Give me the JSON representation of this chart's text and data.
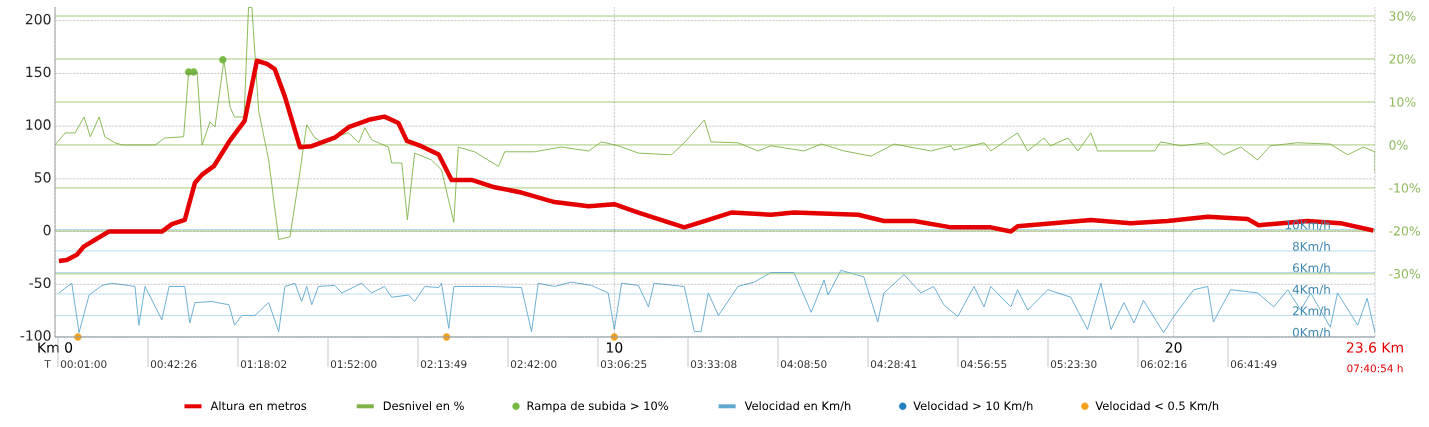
{
  "chart_data": {
    "type": "line",
    "xlim": [
      0,
      23.6
    ],
    "xticks": [
      {
        "value": 0,
        "label": "Km 0"
      },
      10,
      20,
      {
        "value": 23.6,
        "label": "23.6 Km"
      }
    ],
    "annotations": [
      "T",
      "00:01:00",
      "00:42:26",
      "01:18:02",
      "01:52:00",
      "02:13:49",
      "02:42:00",
      "03:06:25",
      "03:33:08",
      "04:08:50",
      "04:28:41",
      "04:56:55",
      "05:23:30",
      "06:02:16",
      "06:41:49",
      "07:40:54 h"
    ],
    "ylim": [
      -100,
      213
    ],
    "yticks": [
      -100,
      -50,
      0,
      50,
      100,
      150,
      200
    ],
    "y2lim": [
      -44.7,
      32.1
    ],
    "y2ticks": [
      {
        "value": -30,
        "label": "-30%"
      },
      {
        "value": -20,
        "label": "-20%"
      },
      {
        "value": -10,
        "label": "-10%"
      },
      {
        "value": 0,
        "label": "0%"
      },
      {
        "value": 10,
        "label": "10%"
      },
      {
        "value": 20,
        "label": "20%"
      },
      {
        "value": 30,
        "label": "30%"
      }
    ],
    "y3lim": [
      0,
      30.7
    ],
    "y3ticks": [
      {
        "value": 0,
        "label": "0Km/h"
      },
      {
        "value": 2,
        "label": "2Km/h"
      },
      {
        "value": 4,
        "label": "4Km/h"
      },
      {
        "value": 6,
        "label": "6Km/h"
      },
      {
        "value": 8,
        "label": "8Km/h"
      },
      {
        "value": 10,
        "label": "10Km/h"
      }
    ],
    "grid": true,
    "legend": "bottom",
    "series": [
      {
        "name": "Altura en metros",
        "color": "#e50000",
        "x": [
          0.07,
          0.21,
          0.39,
          0.52,
          0.71,
          0.96,
          1.91,
          2.09,
          2.32,
          2.5,
          2.63,
          2.84,
          3.11,
          3.39,
          3.61,
          3.79,
          3.93,
          4.11,
          4.38,
          4.59,
          5.0,
          5.25,
          5.61,
          5.89,
          6.14,
          6.29,
          6.55,
          6.86,
          7.09,
          7.45,
          7.86,
          8.34,
          8.93,
          9.54,
          10.0,
          10.43,
          11.25,
          11.61,
          12.09,
          12.8,
          13.21,
          14.36,
          14.82,
          15.36,
          16.02,
          16.73,
          17.09,
          17.21,
          17.63,
          18.52,
          19.23,
          19.89,
          20.61,
          21.32,
          21.52,
          22.39,
          22.98,
          23.57
        ],
        "values": [
          -28,
          -27,
          -22,
          -14,
          -8,
          0,
          0,
          7,
          11,
          46,
          54,
          62,
          85,
          105,
          162,
          159,
          154,
          128,
          80,
          81,
          89,
          99,
          106,
          109,
          103,
          86,
          81,
          73,
          49,
          49,
          42,
          37,
          28,
          24,
          26,
          18,
          4,
          10,
          18,
          16,
          18,
          16,
          10,
          10,
          4,
          4,
          0,
          5,
          7,
          11,
          8,
          10,
          14,
          12,
          6,
          10,
          8,
          1
        ]
      },
      {
        "name": "Desnivel en %",
        "axis": "y2",
        "color": "#7fb347",
        "x": [
          0,
          0.18,
          0.36,
          0.52,
          0.63,
          0.79,
          0.89,
          1.07,
          1.2,
          1.79,
          1.96,
          2.3,
          2.39,
          2.54,
          2.63,
          2.77,
          2.86,
          3.02,
          3.13,
          3.21,
          3.38,
          3.46,
          3.52,
          3.64,
          3.82,
          4.0,
          4.2,
          4.36,
          4.5,
          4.63,
          4.77,
          5.0,
          5.25,
          5.43,
          5.54,
          5.66,
          5.96,
          6.02,
          6.2,
          6.3,
          6.43,
          6.73,
          6.91,
          7.13,
          7.21,
          7.5,
          7.93,
          8.04,
          8.57,
          9.05,
          9.54,
          9.77,
          10.07,
          10.43,
          11.02,
          11.25,
          11.61,
          11.73,
          12.21,
          12.57,
          12.8,
          13.39,
          13.7,
          14.11,
          14.59,
          15.0,
          15.66,
          16.02,
          16.07,
          16.61,
          16.73,
          17.21,
          17.39,
          17.68,
          17.8,
          18.11,
          18.29,
          18.52,
          18.64,
          19.66,
          19.77,
          20.13,
          20.61,
          20.89,
          21.2,
          21.5,
          21.73,
          22.21,
          22.8,
          23.11,
          23.39,
          23.6,
          23.6
        ],
        "values": [
          0,
          2.8,
          2.8,
          6.5,
          1.9,
          6.5,
          1.9,
          0.5,
          0,
          0,
          1.6,
          1.9,
          17,
          17,
          0,
          5.3,
          4.2,
          19.8,
          8.8,
          6.5,
          6.5,
          32,
          32,
          8,
          -3.5,
          -22,
          -21.4,
          -8,
          4.7,
          1.9,
          0.5,
          1.9,
          2.8,
          0.5,
          4,
          1.2,
          -0.5,
          -4.2,
          -4.2,
          -17.4,
          -1.9,
          -3.5,
          -5.8,
          -18,
          -0.5,
          -1.6,
          -5,
          -1.6,
          -1.6,
          -0.5,
          -1.4,
          0.7,
          -0.2,
          -1.9,
          -2.3,
          0.5,
          5.8,
          0.7,
          0.5,
          -1.4,
          -0.2,
          -1.4,
          0.2,
          -1.4,
          -2.6,
          0.2,
          -1.4,
          -0.2,
          -1.2,
          0.5,
          -1.4,
          2.8,
          -1.4,
          1.6,
          -0.2,
          1.6,
          -1.4,
          2.8,
          -1.4,
          -1.4,
          0.7,
          -0.2,
          0.5,
          -2.3,
          -0.5,
          -3.5,
          -0.2,
          0.5,
          0.2,
          -2.3,
          -0.5,
          -1.6,
          -6.5
        ]
      },
      {
        "name": "Rampa de subida > 10%",
        "type": "scatter",
        "axis": "y2",
        "marker": "circle",
        "color": "#77b843",
        "x": [
          2.39,
          2.48,
          3.0
        ],
        "values": [
          17,
          17,
          19.8
        ]
      },
      {
        "name": "Velocidad en Km/h",
        "axis": "y3",
        "color": "#5ea8cf",
        "x": [
          0.07,
          0.3,
          0.43,
          0.61,
          0.84,
          1.02,
          1.43,
          1.5,
          1.61,
          1.91,
          2.04,
          2.32,
          2.41,
          2.5,
          2.8,
          3.11,
          3.21,
          3.34,
          3.57,
          3.82,
          4.0,
          4.11,
          4.29,
          4.41,
          4.5,
          4.59,
          4.71,
          5.0,
          5.13,
          5.48,
          5.66,
          5.89,
          6.02,
          6.32,
          6.43,
          6.61,
          6.86,
          6.91,
          7.04,
          7.13,
          7.39,
          7.63,
          7.8,
          8.34,
          8.52,
          8.64,
          8.93,
          9.23,
          9.59,
          9.89,
          10.0,
          10.13,
          10.43,
          10.61,
          10.71,
          11.25,
          11.43,
          11.55,
          11.68,
          11.86,
          12.21,
          12.5,
          12.8,
          13.21,
          13.52,
          13.75,
          13.82,
          14.05,
          14.46,
          14.71,
          14.82,
          15.18,
          15.48,
          15.71,
          15.89,
          16.14,
          16.43,
          16.61,
          16.73,
          17.09,
          17.21,
          17.39,
          17.75,
          18.16,
          18.46,
          18.7,
          18.88,
          19.11,
          19.29,
          19.46,
          19.82,
          20.0,
          20.36,
          20.61,
          20.71,
          21.02,
          21.5,
          21.79,
          22.04,
          22.27,
          22.45,
          22.8,
          22.93,
          23.29,
          23.46,
          23.6
        ],
        "values": [
          4.1,
          5,
          0.4,
          3.9,
          4.8,
          5,
          4.7,
          1.1,
          4.7,
          1.6,
          4.7,
          4.7,
          1.3,
          3.2,
          3.3,
          3,
          1.1,
          2,
          2,
          3.2,
          0.5,
          4.7,
          5,
          3.3,
          4.7,
          3,
          4.7,
          4.8,
          4.1,
          5,
          4.1,
          4.7,
          3.7,
          3.9,
          3.3,
          4.7,
          4.6,
          5,
          0.8,
          4.7,
          4.7,
          4.7,
          4.7,
          4.6,
          0.5,
          5,
          4.7,
          5.1,
          4.8,
          4.1,
          0.7,
          5,
          4.8,
          2.8,
          5,
          4.7,
          0.5,
          0.5,
          4.1,
          2,
          4.7,
          5.1,
          6,
          6,
          2.3,
          5.3,
          3.9,
          6.2,
          5.6,
          1.4,
          4.1,
          5.8,
          4.1,
          4.7,
          3,
          1.9,
          4.7,
          2.8,
          4.7,
          2.8,
          4.4,
          2.5,
          4.4,
          3.7,
          0.7,
          5,
          0.7,
          3.2,
          1.3,
          3.4,
          0.4,
          1.9,
          4.4,
          4.7,
          1.4,
          4.4,
          4.1,
          2.8,
          4.4,
          2.5,
          4.1,
          0.9,
          4.1,
          1.1,
          3.6,
          0.4
        ]
      },
      {
        "name": "Velocidad > 10 Km/h",
        "type": "scatter",
        "axis": "y3",
        "marker": "circle",
        "color": "#1f7fc0"
      },
      {
        "name": "Velocidad < 0.5 Km/h",
        "type": "scatter",
        "axis": "y3",
        "marker": "circle",
        "color": "#f5a01a",
        "x": [
          0.41,
          7.0,
          10.0
        ],
        "values": [
          0,
          0,
          0
        ]
      }
    ]
  }
}
